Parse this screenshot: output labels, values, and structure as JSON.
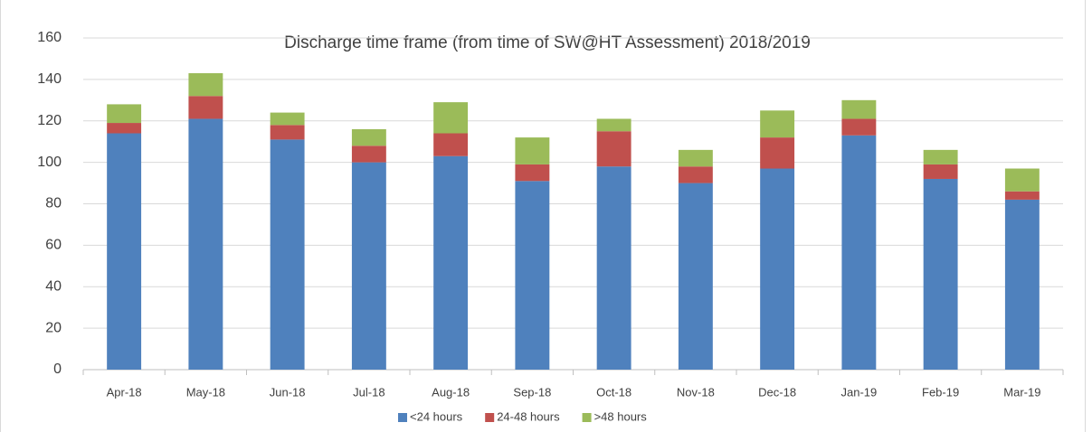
{
  "chart_data": {
    "type": "stacked_bar",
    "title": "Discharge time frame (from time of SW@HT Assessment) 2018/2019",
    "categories": [
      "Apr-18",
      "May-18",
      "Jun-18",
      "Jul-18",
      "Aug-18",
      "Sep-18",
      "Oct-18",
      "Nov-18",
      "Dec-18",
      "Jan-19",
      "Feb-19",
      "Mar-19"
    ],
    "series": [
      {
        "name": "<24 hours",
        "color": "#4f81bd",
        "values": [
          114,
          121,
          111,
          100,
          103,
          91,
          98,
          90,
          97,
          113,
          92,
          82
        ]
      },
      {
        "name": "24-48 hours",
        "color": "#c0504d",
        "values": [
          5,
          11,
          7,
          8,
          11,
          8,
          17,
          8,
          15,
          8,
          7,
          4
        ]
      },
      {
        "name": ">48 hours",
        "color": "#9bbb59",
        "values": [
          9,
          11,
          6,
          8,
          15,
          13,
          6,
          8,
          13,
          9,
          7,
          11
        ]
      }
    ],
    "ylim": [
      0,
      160
    ],
    "yticks": [
      0,
      20,
      40,
      60,
      80,
      100,
      120,
      140,
      160
    ],
    "grid": true,
    "legend": "bottom"
  }
}
